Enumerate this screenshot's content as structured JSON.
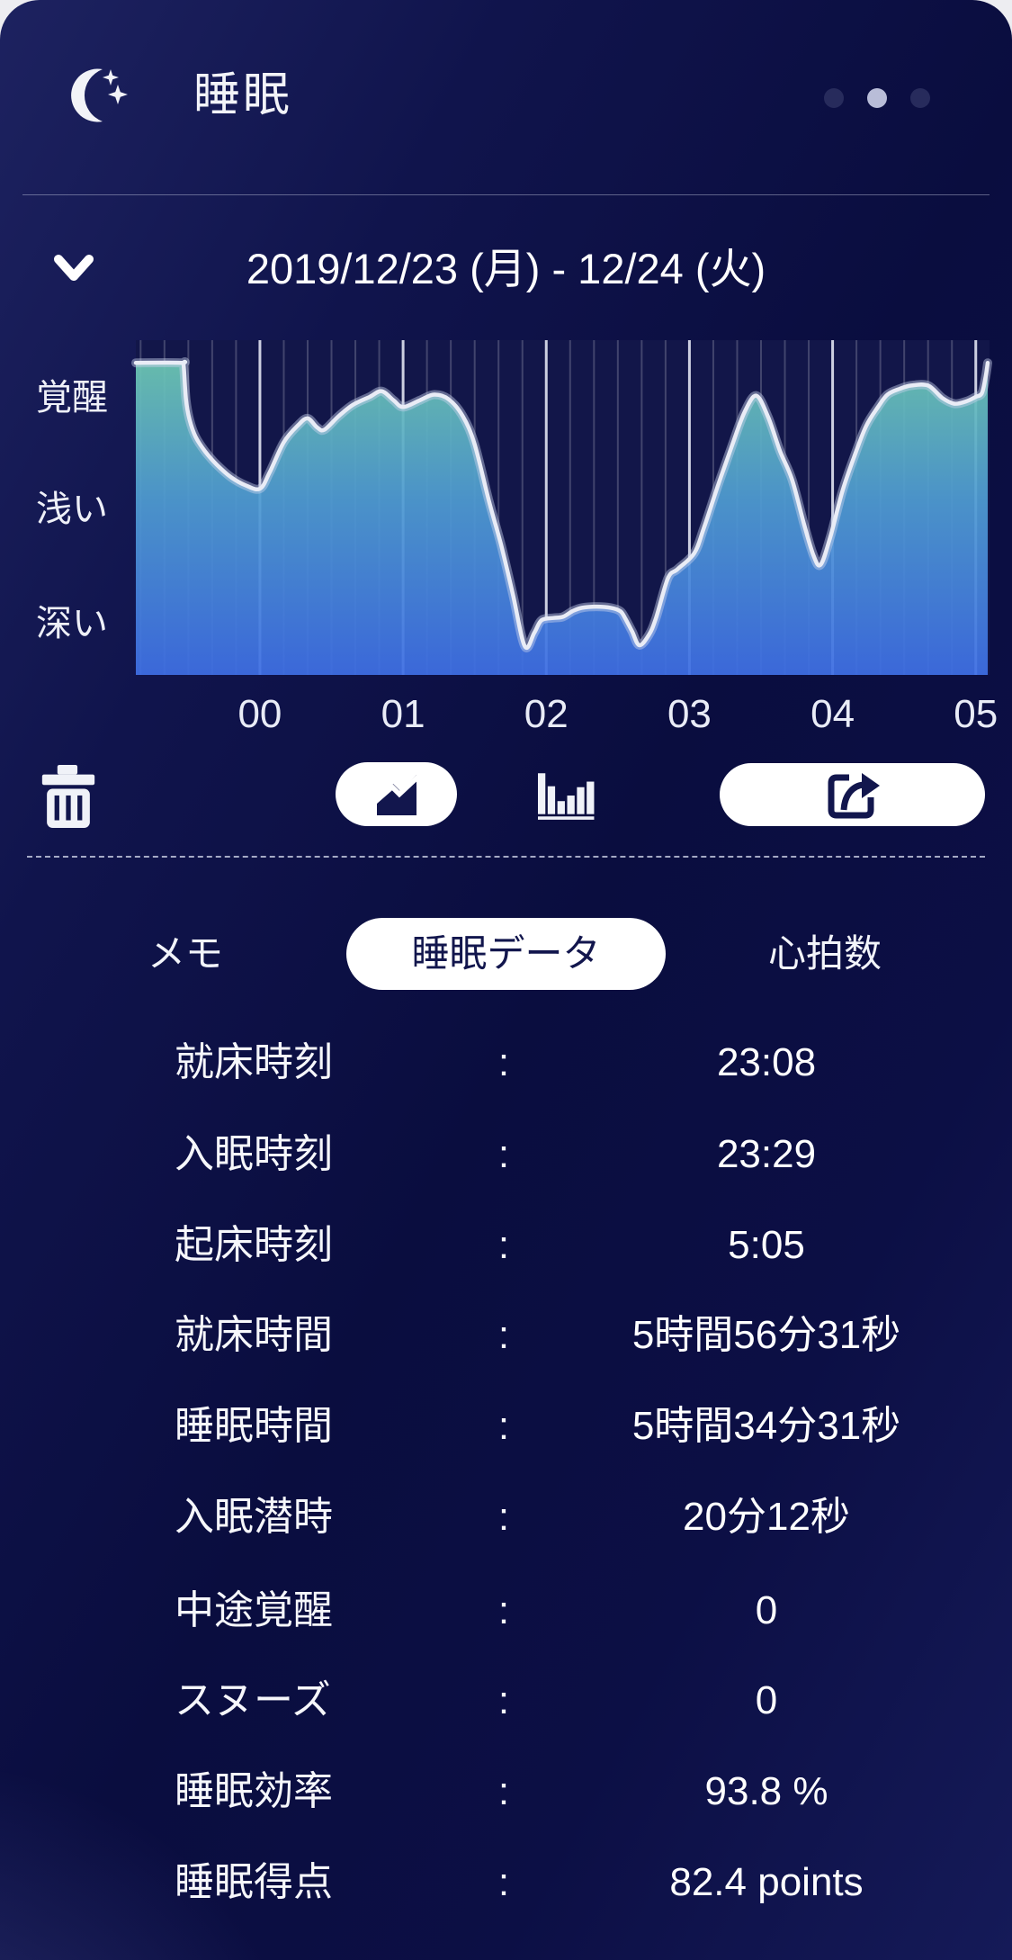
{
  "header": {
    "title": "睡眠"
  },
  "page_dots": {
    "count": 3,
    "active_index": 1,
    "active_color": "#b9bdd8",
    "inactive_color": "#272b5c"
  },
  "date_nav": {
    "range_label": "2019/12/23 (月) - 12/24 (火)"
  },
  "chart_data": {
    "type": "area",
    "y_axis_labels": [
      "覚醒",
      "浅い",
      "深い"
    ],
    "x_tick_labels": [
      "00",
      "01",
      "02",
      "03",
      "04",
      "05"
    ],
    "x_start_time": "23:08",
    "x_end_time": "5:05",
    "x_minutes_domain": [
      8,
      365
    ],
    "hour_tick_minutes": [
      60,
      120,
      180,
      240,
      300,
      360
    ],
    "minor_grid_step_minutes": 10,
    "stage_levels": {
      "awake": 2,
      "light": 1,
      "deep": 0
    },
    "points": [
      [
        8,
        2.3
      ],
      [
        27,
        2.3
      ],
      [
        28,
        2.28
      ],
      [
        29,
        1.98
      ],
      [
        30.5,
        1.8
      ],
      [
        33,
        1.65
      ],
      [
        37,
        1.52
      ],
      [
        42,
        1.4
      ],
      [
        48,
        1.29
      ],
      [
        54,
        1.22
      ],
      [
        60,
        1.19
      ],
      [
        64,
        1.33
      ],
      [
        70,
        1.6
      ],
      [
        76,
        1.75
      ],
      [
        80,
        1.81
      ],
      [
        84,
        1.73
      ],
      [
        87,
        1.71
      ],
      [
        93,
        1.83
      ],
      [
        99,
        1.93
      ],
      [
        106,
        2.0
      ],
      [
        111,
        2.05
      ],
      [
        116,
        1.97
      ],
      [
        120,
        1.91
      ],
      [
        127,
        1.97
      ],
      [
        133,
        2.02
      ],
      [
        139,
        1.98
      ],
      [
        145,
        1.83
      ],
      [
        150,
        1.58
      ],
      [
        156,
        1.08
      ],
      [
        161,
        0.7
      ],
      [
        166,
        0.26
      ],
      [
        171,
        -0.2
      ],
      [
        175,
        -0.08
      ],
      [
        178,
        0.03
      ],
      [
        183,
        0.05
      ],
      [
        187,
        0.06
      ],
      [
        191,
        0.11
      ],
      [
        195,
        0.14
      ],
      [
        201,
        0.15
      ],
      [
        207,
        0.14
      ],
      [
        211,
        0.11
      ],
      [
        213,
        0.05
      ],
      [
        216,
        -0.07
      ],
      [
        219,
        -0.19
      ],
      [
        223,
        -0.1
      ],
      [
        226,
        0.05
      ],
      [
        231,
        0.4
      ],
      [
        235,
        0.48
      ],
      [
        242,
        0.62
      ],
      [
        246,
        0.84
      ],
      [
        252,
        1.22
      ],
      [
        258,
        1.58
      ],
      [
        263,
        1.86
      ],
      [
        268,
        2.01
      ],
      [
        273,
        1.82
      ],
      [
        278,
        1.52
      ],
      [
        283,
        1.27
      ],
      [
        288,
        0.88
      ],
      [
        292,
        0.6
      ],
      [
        295,
        0.52
      ],
      [
        299,
        0.76
      ],
      [
        304,
        1.16
      ],
      [
        309,
        1.47
      ],
      [
        314,
        1.74
      ],
      [
        319,
        1.91
      ],
      [
        323,
        2.02
      ],
      [
        328,
        2.07
      ],
      [
        333,
        2.1
      ],
      [
        340,
        2.1
      ],
      [
        346,
        1.99
      ],
      [
        351,
        1.94
      ],
      [
        356,
        1.96
      ],
      [
        360,
        2.0
      ],
      [
        362.5,
        2.03
      ],
      [
        364,
        2.16
      ],
      [
        365,
        2.3
      ]
    ],
    "colors": {
      "plot_bg": "#121649",
      "fill_top": "#6ec9b2",
      "fill_mid": "#4f9cd2",
      "fill_bottom": "#3e6ee4",
      "line": "#e9ecf6",
      "grid_minor": "rgba(255,255,255,0.20)",
      "grid_hour": "rgba(237,240,250,0.85)"
    }
  },
  "toolbar": {
    "icons": [
      "trash",
      "line-chart",
      "bar-chart",
      "share"
    ],
    "selected_view": "line-chart"
  },
  "tabs": {
    "items": [
      {
        "label": "メモ",
        "selected": false
      },
      {
        "label": "睡眠データ",
        "selected": true
      },
      {
        "label": "心拍数",
        "selected": false
      }
    ]
  },
  "stats": {
    "separator": ":",
    "rows": [
      {
        "label": "就床時刻",
        "value": "23:08"
      },
      {
        "label": "入眠時刻",
        "value": "23:29"
      },
      {
        "label": "起床時刻",
        "value": "5:05"
      },
      {
        "label": "就床時間",
        "value": "5時間56分31秒"
      },
      {
        "label": "睡眠時間",
        "value": "5時間34分31秒"
      },
      {
        "label": "入眠潜時",
        "value": "20分12秒"
      },
      {
        "label": "中途覚醒",
        "value": "0"
      },
      {
        "label": "スヌーズ",
        "value": "0"
      },
      {
        "label": "睡眠効率",
        "value": "93.8 %"
      },
      {
        "label": "睡眠得点",
        "value": "82.4 points"
      }
    ]
  }
}
